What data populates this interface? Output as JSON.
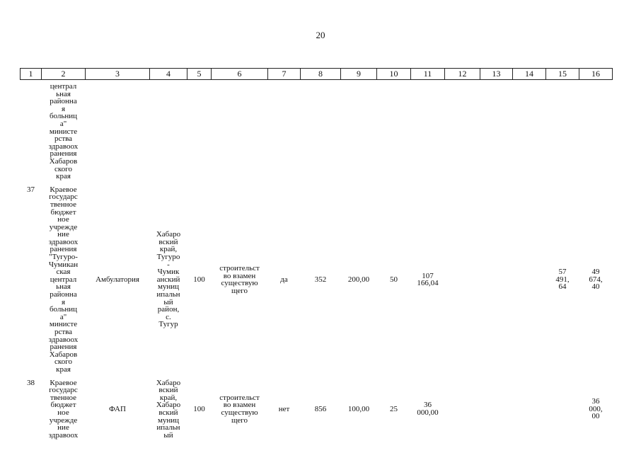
{
  "page_number": "20",
  "table": {
    "header": [
      "1",
      "2",
      "3",
      "4",
      "5",
      "6",
      "7",
      "8",
      "9",
      "10",
      "11",
      "12",
      "13",
      "14",
      "15",
      "16"
    ],
    "rows": [
      [
        null,
        [
          "централ",
          "ьная",
          "районна",
          "я",
          "больниц",
          "а\"",
          "министе",
          "рства",
          "здравоох",
          "ранения",
          "Хабаров",
          "ского",
          "края"
        ],
        null,
        null,
        null,
        null,
        null,
        null,
        null,
        null,
        null,
        null,
        null,
        null,
        null,
        null
      ],
      [
        [
          "37"
        ],
        [
          "Краевое",
          "государс",
          "твенное",
          "бюджет",
          "ное",
          "учрежде",
          "ние",
          "здравоох",
          "ранения",
          "\"Тугуро-",
          "Чумикан",
          "ская",
          "централ",
          "ьная",
          "районна",
          "я",
          "больниц",
          "а\"",
          "министе",
          "рства",
          "здравоох",
          "ранения",
          "Хабаров",
          "ского",
          "края"
        ],
        [
          "Амбулатория"
        ],
        [
          "Хабаро",
          "вский",
          "край,",
          "Тугуро",
          "-",
          "Чумик",
          "анский",
          "муниц",
          "ипальн",
          "ый",
          "район,",
          "с.",
          "Тугур"
        ],
        [
          "100"
        ],
        [
          "строительст",
          "во взамен",
          "существую",
          "щего"
        ],
        [
          "да"
        ],
        [
          "352"
        ],
        [
          "200,00"
        ],
        [
          "50"
        ],
        [
          "107",
          "166,04"
        ],
        null,
        null,
        null,
        [
          "57",
          "491,",
          "64"
        ],
        [
          "49",
          "674,",
          "40"
        ]
      ],
      [
        [
          "38"
        ],
        [
          "Краевое",
          "государс",
          "твенное",
          "бюджет",
          "ное",
          "учрежде",
          "ние",
          "здравоох"
        ],
        [
          "ФАП"
        ],
        [
          "Хабаро",
          "вский",
          "край,",
          "Хабаро",
          "вский",
          "муниц",
          "ипальн",
          "ый"
        ],
        [
          "100"
        ],
        [
          "строительст",
          "во взамен",
          "существую",
          "щего"
        ],
        [
          "нет"
        ],
        [
          "856"
        ],
        [
          "100,00"
        ],
        [
          "25"
        ],
        [
          "36",
          "000,00"
        ],
        null,
        null,
        null,
        null,
        [
          "36",
          "000,",
          "00"
        ]
      ]
    ]
  }
}
